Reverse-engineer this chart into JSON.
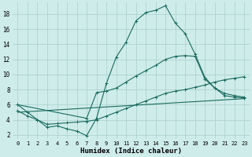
{
  "xlabel": "Humidex (Indice chaleur)",
  "background_color": "#ceecea",
  "grid_color": "#aed4d2",
  "line_color": "#1a6b5e",
  "xlim": [
    -0.5,
    23.5
  ],
  "ylim": [
    1.5,
    19.5
  ],
  "yticks": [
    2,
    4,
    6,
    8,
    10,
    12,
    14,
    16,
    18
  ],
  "xticks": [
    0,
    1,
    2,
    3,
    4,
    5,
    6,
    7,
    8,
    9,
    10,
    11,
    12,
    13,
    14,
    15,
    16,
    17,
    18,
    19,
    20,
    21,
    22,
    23
  ],
  "line1_x": [
    0,
    1,
    2,
    3,
    4,
    5,
    6,
    7,
    8,
    9,
    10,
    11,
    12,
    13,
    14,
    15,
    16,
    17,
    18,
    19,
    20,
    21,
    22,
    23
  ],
  "line1_y": [
    6.0,
    5.0,
    4.0,
    3.0,
    3.2,
    2.8,
    2.5,
    1.9,
    4.2,
    8.8,
    12.3,
    14.3,
    17.1,
    18.2,
    18.5,
    19.1,
    16.8,
    15.4,
    12.7,
    9.6,
    8.2,
    7.2,
    7.0,
    6.9
  ],
  "line2_x": [
    0,
    7,
    8,
    9,
    10,
    11,
    12,
    13,
    14,
    15,
    16,
    17,
    18,
    19,
    20,
    21,
    22,
    23
  ],
  "line2_y": [
    6.0,
    4.2,
    7.6,
    7.8,
    8.2,
    9.0,
    9.8,
    10.5,
    11.2,
    12.0,
    12.4,
    12.5,
    12.4,
    9.4,
    8.2,
    7.5,
    7.2,
    7.0
  ],
  "line3_x": [
    0,
    1,
    2,
    3,
    4,
    5,
    6,
    7,
    8,
    9,
    10,
    11,
    12,
    13,
    14,
    15,
    16,
    17,
    18,
    19,
    20,
    21,
    22,
    23
  ],
  "line3_y": [
    5.2,
    4.5,
    4.0,
    3.4,
    3.5,
    3.6,
    3.7,
    3.8,
    4.0,
    4.5,
    5.0,
    5.5,
    6.0,
    6.5,
    7.0,
    7.5,
    7.8,
    8.0,
    8.3,
    8.6,
    9.0,
    9.3,
    9.5,
    9.7
  ],
  "line4_x": [
    0,
    23
  ],
  "line4_y": [
    5.0,
    6.8
  ]
}
